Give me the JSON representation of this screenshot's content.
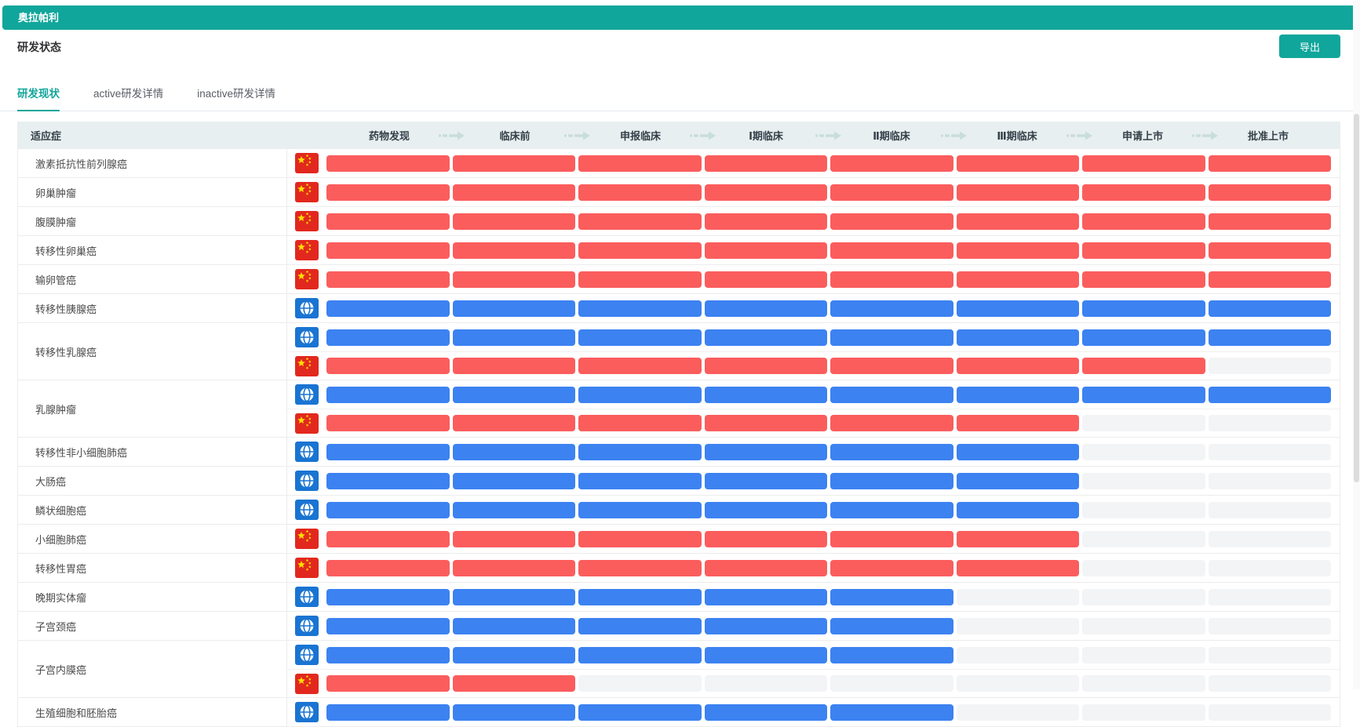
{
  "app": {
    "title": "奥拉帕利"
  },
  "header": {
    "title": "研发状态",
    "export_button": "导出"
  },
  "tabs": [
    {
      "name": "tab-rd-overview",
      "label": "研发现状",
      "active": true
    },
    {
      "name": "tab-active-rd-detail",
      "label": "active研发详情",
      "active": false
    },
    {
      "name": "tab-inactive-rd-detail",
      "label": "inactive研发详情",
      "active": false
    }
  ],
  "pipeline_table": {
    "indication_column_header": "适应症",
    "stage_columns": [
      "药物发现",
      "临床前",
      "申报临床",
      "Ⅰ期临床",
      "Ⅱ期临床",
      "Ⅲ期临床",
      "申请上市",
      "批准上市"
    ],
    "rows": [
      {
        "indication": "激素抵抗性前列腺癌",
        "tracks": [
          {
            "region": "china",
            "stages_reached": 8
          }
        ]
      },
      {
        "indication": "卵巢肿瘤",
        "tracks": [
          {
            "region": "china",
            "stages_reached": 8
          }
        ]
      },
      {
        "indication": "腹膜肿瘤",
        "tracks": [
          {
            "region": "china",
            "stages_reached": 8
          }
        ]
      },
      {
        "indication": "转移性卵巢癌",
        "tracks": [
          {
            "region": "china",
            "stages_reached": 8
          }
        ]
      },
      {
        "indication": "输卵管癌",
        "tracks": [
          {
            "region": "china",
            "stages_reached": 8
          }
        ]
      },
      {
        "indication": "转移性胰腺癌",
        "tracks": [
          {
            "region": "global",
            "stages_reached": 8
          }
        ]
      },
      {
        "indication": "转移性乳腺癌",
        "tracks": [
          {
            "region": "global",
            "stages_reached": 8
          },
          {
            "region": "china",
            "stages_reached": 7
          }
        ]
      },
      {
        "indication": "乳腺肿瘤",
        "tracks": [
          {
            "region": "global",
            "stages_reached": 8
          },
          {
            "region": "china",
            "stages_reached": 6
          }
        ]
      },
      {
        "indication": "转移性非小细胞肺癌",
        "tracks": [
          {
            "region": "global",
            "stages_reached": 6
          }
        ]
      },
      {
        "indication": "大肠癌",
        "tracks": [
          {
            "region": "global",
            "stages_reached": 6
          }
        ]
      },
      {
        "indication": "鳞状细胞癌",
        "tracks": [
          {
            "region": "global",
            "stages_reached": 6
          }
        ]
      },
      {
        "indication": "小细胞肺癌",
        "tracks": [
          {
            "region": "china",
            "stages_reached": 6
          }
        ]
      },
      {
        "indication": "转移性胃癌",
        "tracks": [
          {
            "region": "china",
            "stages_reached": 6
          }
        ]
      },
      {
        "indication": "晚期实体瘤",
        "tracks": [
          {
            "region": "global",
            "stages_reached": 5
          }
        ]
      },
      {
        "indication": "子宫颈癌",
        "tracks": [
          {
            "region": "global",
            "stages_reached": 5
          }
        ]
      },
      {
        "indication": "子宫内膜癌",
        "tracks": [
          {
            "region": "global",
            "stages_reached": 5
          },
          {
            "region": "china",
            "stages_reached": 2
          }
        ]
      },
      {
        "indication": "生殖细胞和胚胎癌",
        "tracks": [
          {
            "region": "global",
            "stages_reached": 5
          }
        ]
      }
    ]
  },
  "colors": {
    "brand_teal": "#11a69b",
    "bar_red": "#fb5d5d",
    "bar_blue": "#3c82f1",
    "bar_empty": "#f3f4f6",
    "flag_red": "#e2281e",
    "flag_yellow": "#ffde00",
    "globe_blue": "#1974d2",
    "arrow": "#c8ded9",
    "table_header_bg": "#e8eff0"
  }
}
